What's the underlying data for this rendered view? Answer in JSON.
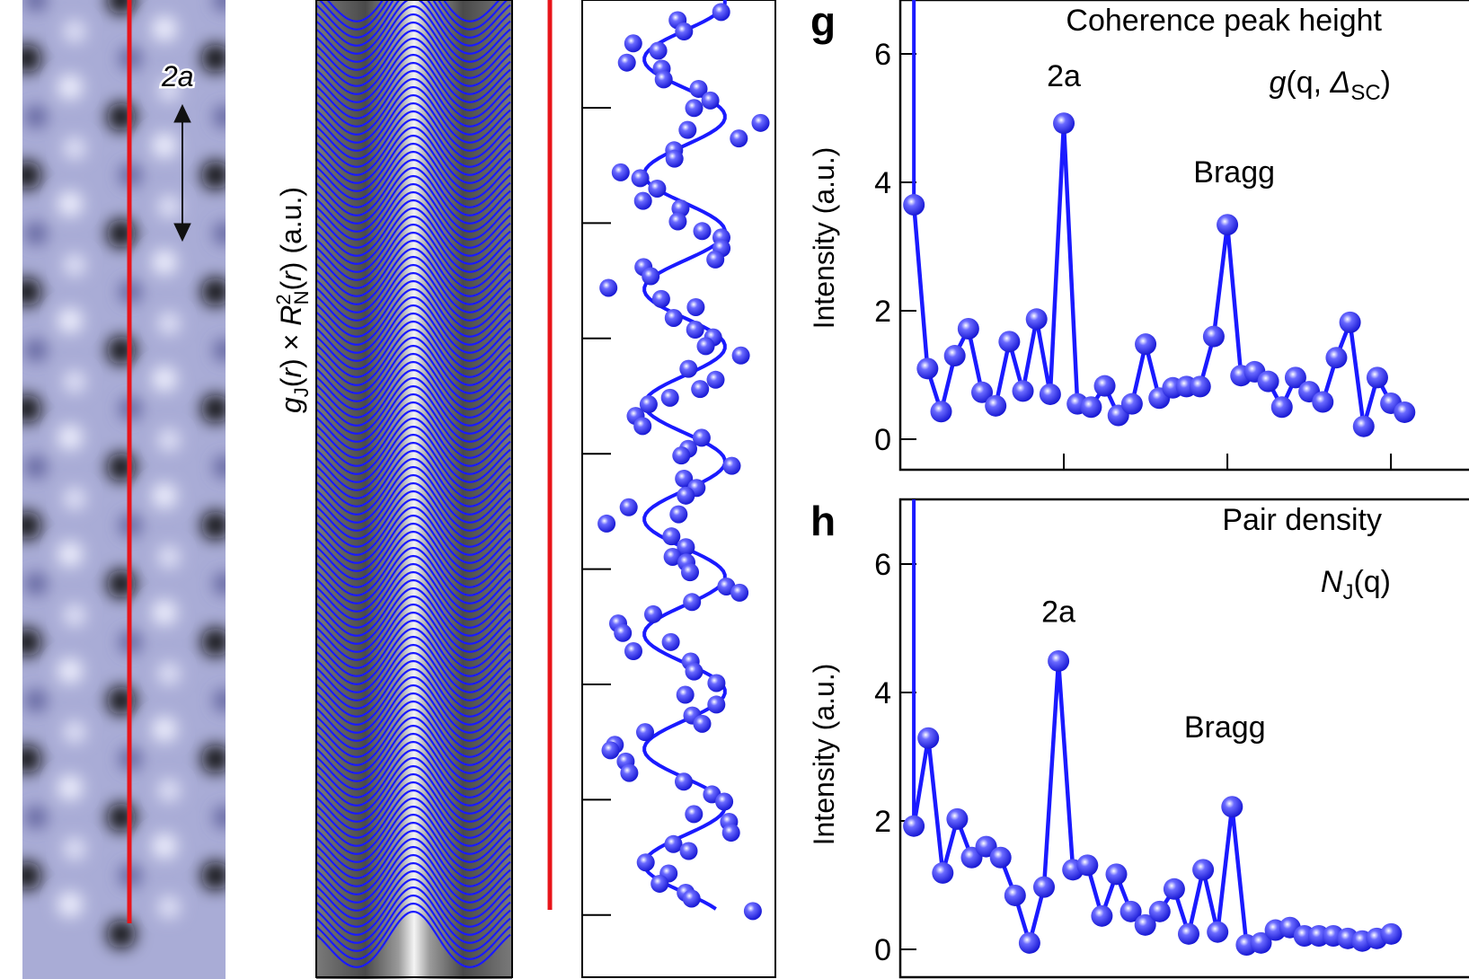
{
  "stm_panel": {
    "scale_label": "2a",
    "line_color": "#e8141a"
  },
  "stack_panel": {
    "ylabel_parts": [
      "g",
      "J",
      "(",
      "r",
      ") × ",
      "R",
      "2",
      "N",
      "(",
      "r",
      ") (a.u.)"
    ]
  },
  "colors": {
    "series": "#1a1aff",
    "marker": "#2b2bff",
    "red_line": "#e8141a"
  },
  "chart_data": [
    {
      "panel_letter": "g",
      "type": "line",
      "title": "Coherence peak height",
      "formula": {
        "name": "g",
        "args": "(q, ",
        "symbol": "Δ",
        "sub": "SC",
        "close": ")"
      },
      "ylabel": "Intensity (a.u.)",
      "yticks": [
        "0",
        "2",
        "4",
        "6"
      ],
      "ylim": [
        -0.5,
        6.9
      ],
      "annotations": [
        {
          "text": "2a",
          "x": 12,
          "y": 5.5
        },
        {
          "text": "Bragg",
          "x": 24.5,
          "y": 4.0
        }
      ],
      "x": [
        1,
        2,
        3,
        4,
        5,
        6,
        7,
        8,
        9,
        10,
        11,
        12,
        13,
        14,
        15,
        16,
        17,
        18,
        19,
        20,
        21,
        22,
        23,
        24,
        25,
        26,
        27,
        28,
        29,
        30,
        31,
        32,
        33,
        34,
        35,
        36,
        37
      ],
      "values": [
        3.65,
        1.1,
        0.43,
        1.3,
        1.72,
        0.73,
        0.52,
        1.52,
        0.75,
        1.87,
        0.7,
        4.92,
        0.55,
        0.5,
        0.83,
        0.37,
        0.55,
        1.48,
        0.64,
        0.8,
        0.82,
        0.82,
        1.6,
        3.34,
        0.99,
        1.05,
        0.9,
        0.5,
        0.96,
        0.74,
        0.58,
        1.27,
        1.82,
        0.2,
        0.96,
        0.56,
        0.42
      ],
      "xticks": [
        12,
        24,
        36
      ],
      "offscale_first": true
    },
    {
      "panel_letter": "h",
      "type": "line",
      "title": "Pair density",
      "formula": {
        "name": "N",
        "sub": "J",
        "args": "(q)"
      },
      "ylabel": "Intensity (a.u.)",
      "yticks": [
        "0",
        "2",
        "4",
        "6"
      ],
      "ylim": [
        -0.5,
        6.9
      ],
      "annotations": [
        {
          "text": "2a",
          "x": 11,
          "y": 5.1
        },
        {
          "text": "Bragg",
          "x": 22.5,
          "y": 3.3
        }
      ],
      "x": [
        1,
        2,
        3,
        4,
        5,
        6,
        7,
        8,
        9,
        10,
        11,
        12,
        13,
        14,
        15,
        16,
        17,
        18,
        19,
        20,
        21,
        22,
        23,
        24,
        25,
        26,
        27,
        28,
        29,
        30,
        31,
        32,
        33,
        34
      ],
      "values": [
        1.92,
        3.29,
        1.19,
        2.03,
        1.43,
        1.6,
        1.43,
        0.84,
        0.1,
        0.97,
        4.49,
        1.24,
        1.31,
        0.52,
        1.17,
        0.59,
        0.38,
        0.59,
        0.94,
        0.24,
        1.24,
        0.27,
        2.22,
        0.07,
        0.1,
        0.3,
        0.34,
        0.21,
        0.21,
        0.21,
        0.17,
        0.13,
        0.17,
        0.24
      ],
      "offscale_first": true
    }
  ]
}
